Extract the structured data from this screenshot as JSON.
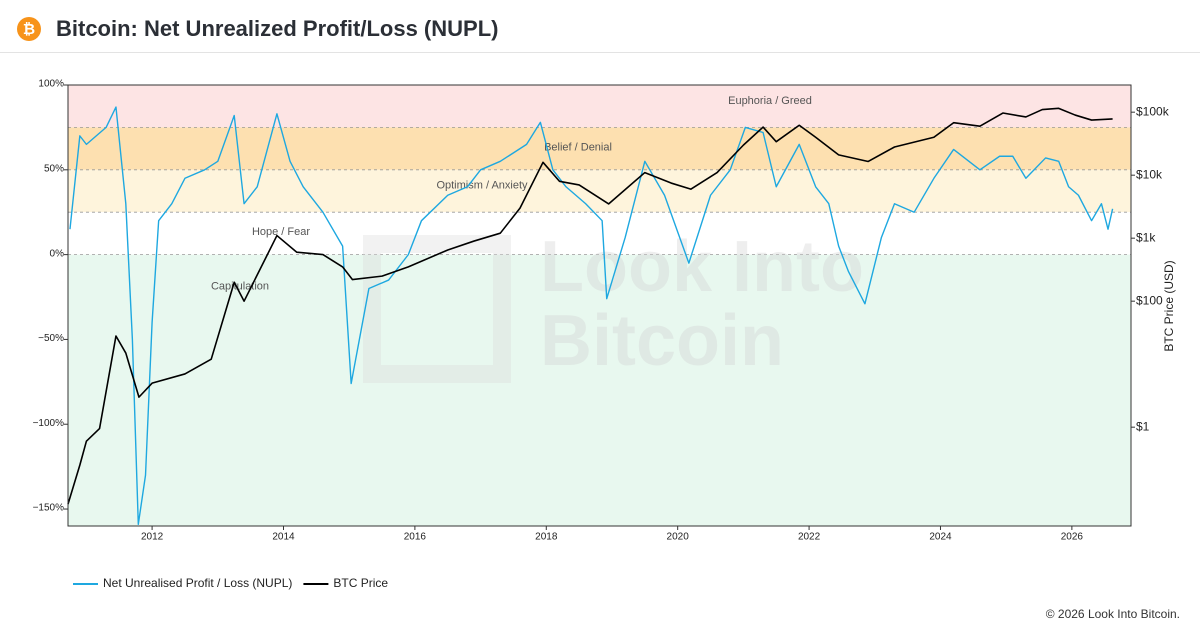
{
  "chart_data": {
    "type": "line",
    "logo": "₿",
    "title": "Bitcoin: Net Unrealized Profit/Loss (NUPL)",
    "watermark": [
      "Look Into",
      "Bitcoin"
    ],
    "y2label": "BTC Price (USD)",
    "footer": "© 2026 Look Into Bitcoin.",
    "xlim": [
      2010.72,
      2026.9
    ],
    "xticks": [
      2012,
      2014,
      2016,
      2018,
      2020,
      2022,
      2024,
      2026
    ],
    "ylim": [
      -160,
      100
    ],
    "yticks": [
      {
        "value": 100,
        "label": "100%"
      },
      {
        "value": 50,
        "label": "50%"
      },
      {
        "value": 0,
        "label": "0%"
      },
      {
        "value": -50,
        "label": "−50%"
      },
      {
        "value": -100,
        "label": "−100%"
      },
      {
        "value": -150,
        "label": "−150%"
      }
    ],
    "y2lim": [
      0.027,
      270000
    ],
    "y2log": true,
    "y2ticks": [
      {
        "value": 100000,
        "label": "$100k"
      },
      {
        "value": 10000,
        "label": "$10k"
      },
      {
        "value": 1000,
        "label": "$1k"
      },
      {
        "value": 100,
        "label": "$100"
      },
      {
        "value": 1,
        "label": "$1"
      }
    ],
    "zones": [
      {
        "name": "Euphoria / Greed",
        "from": 75,
        "to": 100,
        "color": "#fde4e4"
      },
      {
        "name": "Belief / Denial",
        "from": 50,
        "to": 75,
        "color": "#fde0b0"
      },
      {
        "name": "Optimism / Anxiety",
        "from": 25,
        "to": 50,
        "color": "#fef4dc"
      },
      {
        "name": "Hope / Fear",
        "from": 0,
        "to": 25,
        "color": "#ffffff"
      },
      {
        "name": "Capitulation",
        "from": -160,
        "to": 0,
        "color": "#e8f8ef"
      }
    ],
    "series": [
      {
        "name": "Net Unrealised Profit / Loss (NUPL)",
        "color": "#1ea8e0",
        "x": [
          2010.75,
          2010.9,
          2011.0,
          2011.3,
          2011.45,
          2011.6,
          2011.7,
          2011.79,
          2011.9,
          2012.0,
          2012.1,
          2012.3,
          2012.5,
          2012.8,
          2013.0,
          2013.25,
          2013.4,
          2013.6,
          2013.9,
          2014.1,
          2014.3,
          2014.6,
          2014.9,
          2015.03,
          2015.3,
          2015.6,
          2015.9,
          2016.1,
          2016.5,
          2016.8,
          2017.0,
          2017.3,
          2017.5,
          2017.7,
          2017.91,
          2018.1,
          2018.3,
          2018.6,
          2018.85,
          2018.92,
          2019.2,
          2019.5,
          2019.8,
          2020.17,
          2020.5,
          2020.8,
          2021.03,
          2021.3,
          2021.5,
          2021.85,
          2022.1,
          2022.3,
          2022.45,
          2022.6,
          2022.85,
          2023.1,
          2023.3,
          2023.6,
          2023.9,
          2024.2,
          2024.6,
          2024.9,
          2025.1,
          2025.3,
          2025.6,
          2025.8,
          2025.95,
          2026.1,
          2026.3,
          2026.45,
          2026.55,
          2026.62
        ],
        "values": [
          15,
          70,
          65,
          75,
          87,
          30,
          -50,
          -159,
          -130,
          -40,
          20,
          30,
          45,
          50,
          55,
          82,
          30,
          40,
          83,
          55,
          40,
          25,
          5,
          -76,
          -20,
          -15,
          0,
          20,
          35,
          40,
          50,
          55,
          60,
          65,
          78,
          50,
          40,
          30,
          20,
          -26,
          10,
          55,
          35,
          -5,
          35,
          50,
          75,
          72,
          40,
          65,
          40,
          30,
          5,
          -10,
          -29,
          10,
          30,
          25,
          45,
          62,
          50,
          58,
          58,
          45,
          57,
          55,
          40,
          35,
          20,
          30,
          15,
          27
        ]
      },
      {
        "name": "BTC Price",
        "color": "#000000",
        "axis": "y2",
        "x": [
          2010.72,
          2010.9,
          2011.0,
          2011.2,
          2011.45,
          2011.6,
          2011.8,
          2012.0,
          2012.5,
          2012.9,
          2013.25,
          2013.4,
          2013.9,
          2014.2,
          2014.6,
          2014.9,
          2015.05,
          2015.5,
          2015.9,
          2016.5,
          2016.9,
          2017.3,
          2017.6,
          2017.95,
          2018.2,
          2018.5,
          2018.95,
          2019.5,
          2019.9,
          2020.2,
          2020.6,
          2021.0,
          2021.3,
          2021.5,
          2021.85,
          2022.1,
          2022.45,
          2022.9,
          2023.3,
          2023.9,
          2024.2,
          2024.6,
          2024.95,
          2025.3,
          2025.55,
          2025.8,
          2026.05,
          2026.3,
          2026.62
        ],
        "values": [
          0.06,
          0.25,
          0.6,
          0.95,
          28,
          15,
          3,
          5,
          7,
          12,
          200,
          100,
          1100,
          600,
          550,
          350,
          220,
          250,
          350,
          650,
          900,
          1200,
          3000,
          16000,
          8000,
          7000,
          3500,
          11000,
          7500,
          6000,
          11000,
          30000,
          58000,
          34000,
          62000,
          40000,
          21000,
          16500,
          28000,
          40000,
          68000,
          60000,
          97000,
          84000,
          110000,
          115000,
          90000,
          75000,
          78000
        ]
      }
    ]
  }
}
